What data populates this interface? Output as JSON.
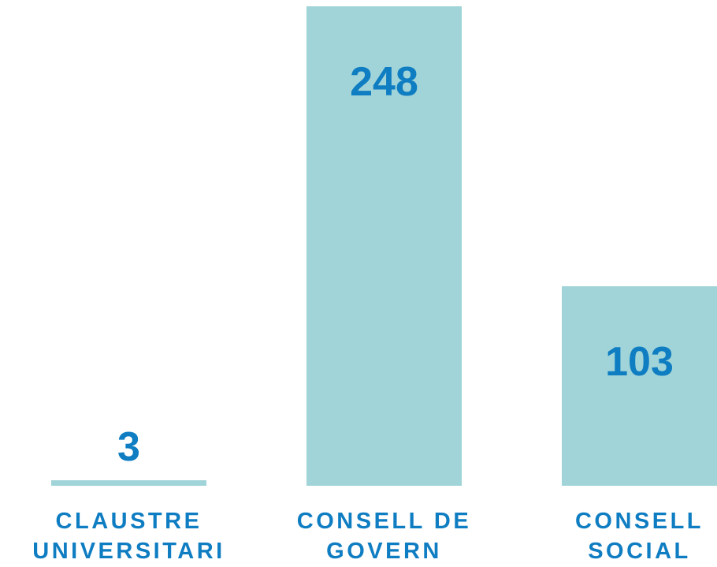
{
  "chart_data": {
    "type": "bar",
    "categories": [
      "CLAUSTRE UNIVERSITARI",
      "CONSELL DE GOVERN",
      "CONSELL SOCIAL"
    ],
    "values": [
      3,
      248,
      103
    ],
    "color": "#a0d4d8",
    "label_color": "#0f7dc2"
  }
}
